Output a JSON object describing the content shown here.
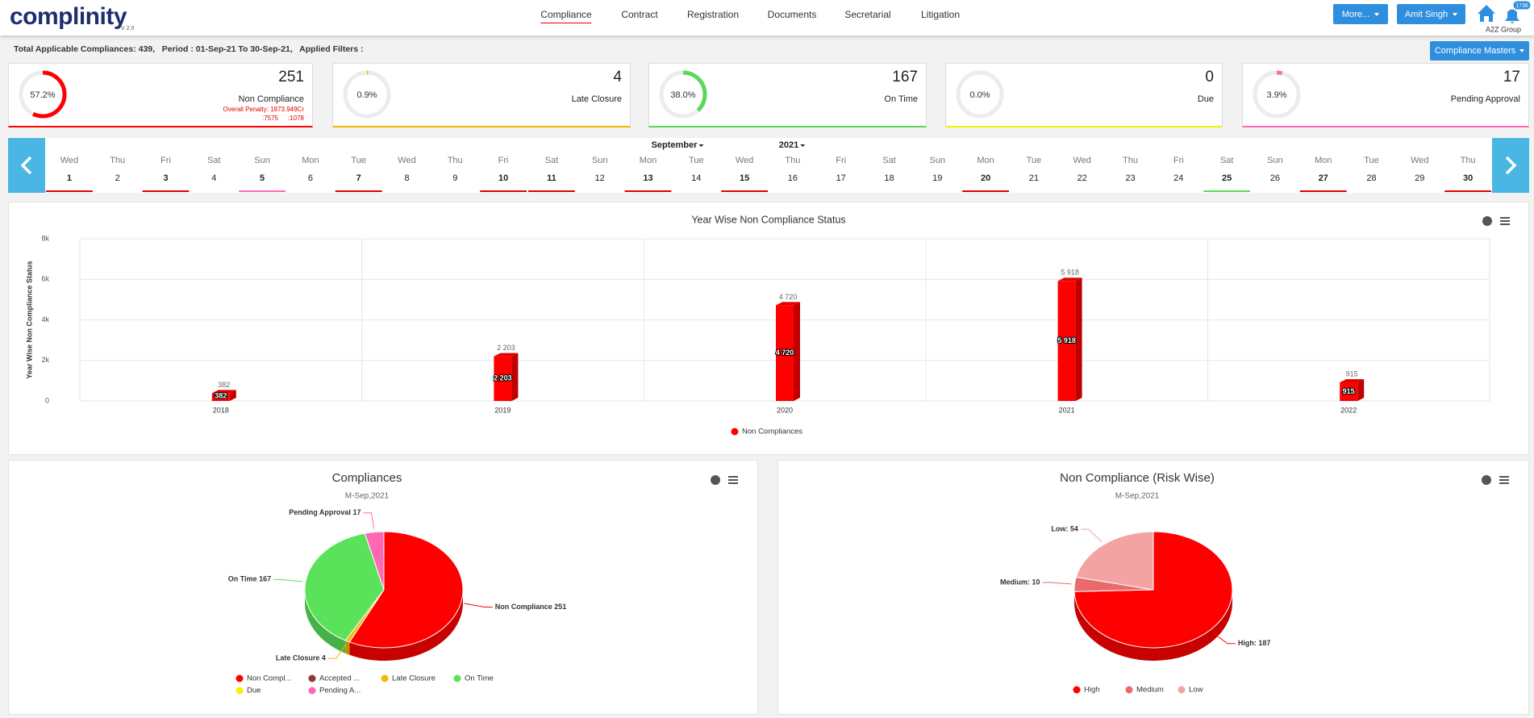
{
  "header": {
    "logo": "complinity",
    "version": "V 2.0",
    "nav": [
      "Compliance",
      "Contract",
      "Registration",
      "Documents",
      "Secretarial",
      "Litigation"
    ],
    "active_nav": 0,
    "buttons": [
      "More...",
      "Amit Singh"
    ],
    "notifications": "1736",
    "group": "A2Z Group"
  },
  "summary": {
    "text": "Total Applicable Compliances: 439,   Period : 01-Sep-21 To 30-Sep-21,   Applied Filters :",
    "masters_button": "Compliance Masters"
  },
  "cards": [
    {
      "percent": 57.2,
      "percent_label": "57.2%",
      "count": 251,
      "label": "Non Compliance",
      "color": "#ff0000",
      "notes": [
        "Overall Penalty: 1873.949Cr",
        ":7575",
        ":1078"
      ]
    },
    {
      "percent": 0.9,
      "percent_label": "0.9%",
      "count": 4,
      "label": "Late Closure",
      "color": "#f5b800"
    },
    {
      "percent": 38.0,
      "percent_label": "38.0%",
      "count": 167,
      "label": "On Time",
      "color": "#5ad85a"
    },
    {
      "percent": 0.0,
      "percent_label": "0.0%",
      "count": 0,
      "label": "Due",
      "color": "#f2f200"
    },
    {
      "percent": 3.9,
      "percent_label": "3.9%",
      "count": 17,
      "label": "Pending Approval",
      "color": "#ff69b4"
    }
  ],
  "calendar": {
    "month": "September",
    "year": "2021",
    "days": [
      {
        "w": "Wed",
        "d": 1,
        "mark": "#e00000"
      },
      {
        "w": "Thu",
        "d": 2
      },
      {
        "w": "Fri",
        "d": 3,
        "mark": "#e00000"
      },
      {
        "w": "Sat",
        "d": 4
      },
      {
        "w": "Sun",
        "d": 5,
        "mark": "#ff69b4"
      },
      {
        "w": "Mon",
        "d": 6
      },
      {
        "w": "Tue",
        "d": 7,
        "mark": "#e00000"
      },
      {
        "w": "Wed",
        "d": 8
      },
      {
        "w": "Thu",
        "d": 9
      },
      {
        "w": "Fri",
        "d": 10,
        "mark": "#e00000"
      },
      {
        "w": "Sat",
        "d": 11,
        "mark": "#e00000"
      },
      {
        "w": "Sun",
        "d": 12
      },
      {
        "w": "Mon",
        "d": 13,
        "mark": "#e00000"
      },
      {
        "w": "Tue",
        "d": 14
      },
      {
        "w": "Wed",
        "d": 15,
        "mark": "#e00000"
      },
      {
        "w": "Thu",
        "d": 16
      },
      {
        "w": "Fri",
        "d": 17
      },
      {
        "w": "Sat",
        "d": 18
      },
      {
        "w": "Sun",
        "d": 19
      },
      {
        "w": "Mon",
        "d": 20,
        "mark": "#e00000"
      },
      {
        "w": "Tue",
        "d": 21
      },
      {
        "w": "Wed",
        "d": 22
      },
      {
        "w": "Thu",
        "d": 23
      },
      {
        "w": "Fri",
        "d": 24
      },
      {
        "w": "Sat",
        "d": 25,
        "mark": "#5ad85a"
      },
      {
        "w": "Sun",
        "d": 26
      },
      {
        "w": "Mon",
        "d": 27,
        "mark": "#e00000"
      },
      {
        "w": "Tue",
        "d": 28
      },
      {
        "w": "Wed",
        "d": 29
      },
      {
        "w": "Thu",
        "d": 30,
        "mark": "#e00000"
      }
    ]
  },
  "chart_data": [
    {
      "type": "bar",
      "title": "Year Wise Non Compliance Status",
      "y_label": "Year Wise Non Compliance Status",
      "categories": [
        "2018",
        "2019",
        "2020",
        "2021",
        "2022"
      ],
      "series": [
        {
          "name": "Non Compliances",
          "color": "#ff0000",
          "values": [
            382,
            2203,
            4720,
            5918,
            915
          ],
          "value_labels": [
            "382",
            "2 203",
            "4 720",
            "5 918",
            "915"
          ]
        }
      ],
      "ylim": [
        0,
        8000
      ],
      "yticks": [
        0,
        {
          "value": 2000,
          "label": "2k"
        },
        {
          "value": 4000,
          "label": "4k"
        },
        {
          "value": 6000,
          "label": "6k"
        },
        {
          "value": 8000,
          "label": "8k"
        }
      ],
      "grid": true
    },
    {
      "type": "pie",
      "title": "Compliances",
      "subtitle": "M-Sep,2021",
      "categories": [
        "Non Compl...",
        "Accepted ...",
        "Late Closure",
        "On Time",
        "Due",
        "Pending A..."
      ],
      "values": [
        251,
        0,
        4,
        167,
        0,
        17
      ],
      "value_labels": [
        "Non Compliance 251",
        null,
        "Late Closure 4",
        "On Time 167",
        null,
        "Pending Approval 17"
      ],
      "colors": [
        "#ff0000",
        "#8b3a3a",
        "#f5b800",
        "#5ae35a",
        "#f2f200",
        "#ff69b4"
      ],
      "legend_columns": 4
    },
    {
      "type": "pie",
      "title": "Non Compliance (Risk Wise)",
      "subtitle": "M-Sep,2021",
      "categories": [
        "High",
        "Medium",
        "Low"
      ],
      "values": [
        187,
        10,
        54
      ],
      "value_labels": [
        "High: 187",
        "Medium: 10",
        "Low: 54"
      ],
      "colors": [
        "#ff0000",
        "#e86a6a",
        "#f4a3a3"
      ],
      "legend_columns": 3
    }
  ]
}
